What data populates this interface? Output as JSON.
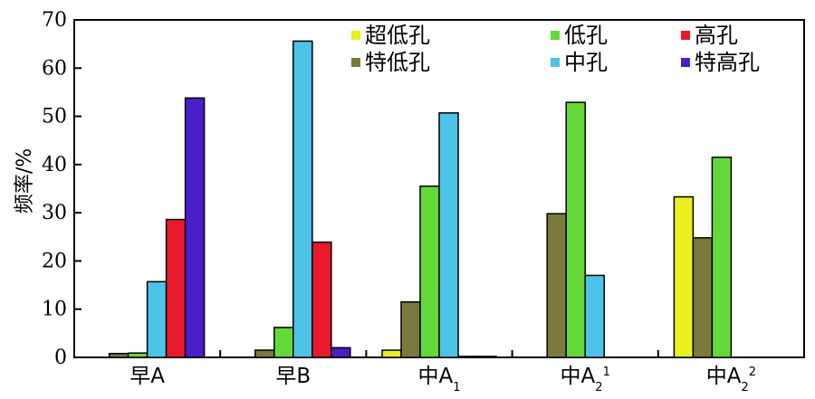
{
  "chart_data": {
    "type": "bar",
    "title": "",
    "xlabel": "",
    "ylabel": "频率/%",
    "ylim": [
      0,
      70
    ],
    "yticks": [
      0,
      10,
      20,
      30,
      40,
      50,
      60,
      70
    ],
    "grid": false,
    "legend_position": "top-right",
    "categories": [
      {
        "main": "早A",
        "sub": "",
        "sup": ""
      },
      {
        "main": "早B",
        "sub": "",
        "sup": ""
      },
      {
        "main": "中A",
        "sub": "1",
        "sup": ""
      },
      {
        "main": "中A",
        "sub": "2",
        "sup": "1"
      },
      {
        "main": "中A",
        "sub": "2",
        "sup": "2"
      }
    ],
    "series": [
      {
        "name": "超低孔",
        "color": "#e8f020",
        "values": [
          0,
          0,
          1.5,
          0,
          33.3
        ]
      },
      {
        "name": "特低孔",
        "color": "#7a7a3e",
        "values": [
          0.8,
          1.5,
          11.5,
          29.8,
          24.8
        ]
      },
      {
        "name": "低孔",
        "color": "#66d93a",
        "values": [
          0.9,
          6.2,
          35.5,
          52.9,
          41.5
        ]
      },
      {
        "name": "中孔",
        "color": "#4dc3e8",
        "values": [
          15.7,
          65.6,
          50.7,
          17.0,
          0
        ]
      },
      {
        "name": "高孔",
        "color": "#e8192a",
        "values": [
          28.6,
          23.9,
          0.2,
          0,
          0
        ]
      },
      {
        "name": "特高孔",
        "color": "#4a1ec8",
        "values": [
          53.8,
          2.0,
          0.2,
          0,
          0
        ]
      }
    ],
    "legend_order": [
      "超低孔",
      "低孔",
      "高孔",
      "特低孔",
      "中孔",
      "特高孔"
    ]
  }
}
